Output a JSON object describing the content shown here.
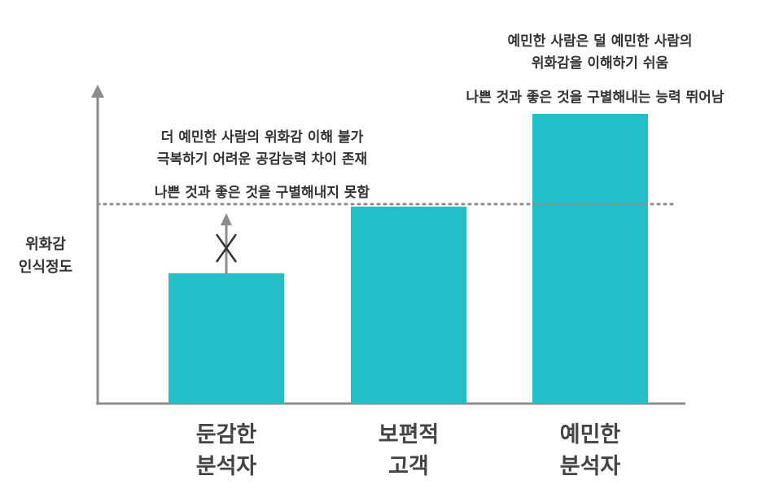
{
  "y_axis_label": [
    "위화감",
    "인식정도"
  ],
  "colors": {
    "bar": "#22BFC9",
    "axis": "#8C8C8C",
    "dotted_line": "#8C8C8C",
    "text": "#333333"
  },
  "annotations": {
    "sensitive": {
      "line1": "예민한 사람은 덜 예민한 사람의",
      "line2": "위화감을 이해하기 쉬움",
      "line3": "나쁜 것과 좋은 것을 구별해내는 능력 뛰어남"
    },
    "dull": {
      "line1": "더 예민한 사람의 위화감 이해 불가",
      "line2": "극복하기 어려운 공감능력 차이 존재",
      "line3": "나쁜 것과 좋은 것을 구별해내지 못함"
    }
  },
  "categories": [
    {
      "line1": "둔감한",
      "line2": "분석자",
      "level": 0.45
    },
    {
      "line1": "보편적",
      "line2": "고객",
      "level": 0.68
    },
    {
      "line1": "예민한",
      "line2": "분석자",
      "level": 1.0
    }
  ],
  "reference_level": 0.68,
  "blocked_arrow_icon": "x-crossed-arrow-icon"
}
